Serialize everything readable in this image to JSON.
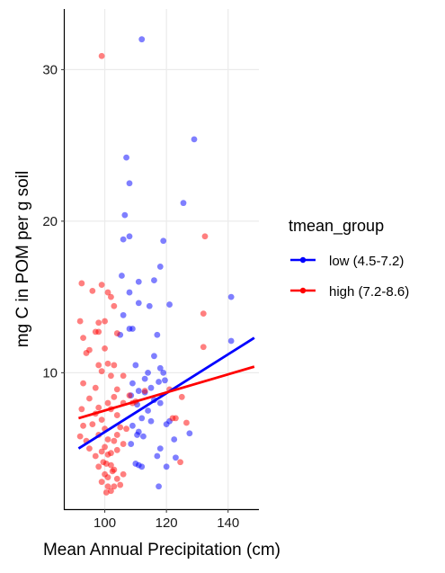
{
  "chart_data": {
    "type": "scatter",
    "title": "",
    "xlabel": "Mean Annual Precipitation (cm)",
    "ylabel": "mg C in POM per g soil",
    "xlim": [
      87,
      150
    ],
    "ylim": [
      1,
      34
    ],
    "x_ticks": [
      100,
      120,
      140
    ],
    "y_ticks": [
      10,
      20,
      30
    ],
    "grid": true,
    "legend": {
      "title": "tmean_group",
      "placement": "right"
    },
    "series": [
      {
        "name": "low (4.5-7.2)",
        "color": "#0000ff",
        "points": [
          [
            112,
            32.0
          ],
          [
            129,
            25.4
          ],
          [
            107,
            24.2
          ],
          [
            108,
            22.5
          ],
          [
            125.5,
            21.2
          ],
          [
            106.5,
            20.4
          ],
          [
            108,
            19.0
          ],
          [
            106,
            18.8
          ],
          [
            119,
            18.7
          ],
          [
            118,
            17.0
          ],
          [
            105.5,
            16.4
          ],
          [
            111,
            16.0
          ],
          [
            116,
            16.1
          ],
          [
            108,
            15.3
          ],
          [
            141,
            15.0
          ],
          [
            121,
            14.5
          ],
          [
            111,
            14.6
          ],
          [
            114.5,
            14.4
          ],
          [
            106,
            13.8
          ],
          [
            108,
            12.9
          ],
          [
            109,
            12.9
          ],
          [
            105,
            12.5
          ],
          [
            117,
            12.5
          ],
          [
            141,
            12.1
          ],
          [
            116,
            11.1
          ],
          [
            110,
            10.5
          ],
          [
            114,
            10.0
          ],
          [
            118,
            10.3
          ],
          [
            119,
            10.0
          ],
          [
            109,
            9.3
          ],
          [
            115,
            9.0
          ],
          [
            113,
            9.6
          ],
          [
            117.5,
            9.4
          ],
          [
            119.5,
            9.5
          ],
          [
            111,
            8.8
          ],
          [
            113,
            8.7
          ],
          [
            108.5,
            8.5
          ],
          [
            110.5,
            7.9
          ],
          [
            116,
            8.2
          ],
          [
            114,
            7.5
          ],
          [
            118,
            8.0
          ],
          [
            112,
            7.0
          ],
          [
            109,
            6.5
          ],
          [
            115,
            6.8
          ],
          [
            120,
            6.6
          ],
          [
            111,
            6.1
          ],
          [
            112.5,
            5.8
          ],
          [
            110.5,
            5.9
          ],
          [
            127.5,
            6.0
          ],
          [
            108.5,
            5.3
          ],
          [
            121,
            6.8
          ],
          [
            122.5,
            5.6
          ],
          [
            118,
            5.0
          ],
          [
            117,
            4.5
          ],
          [
            110,
            4.0
          ],
          [
            111,
            3.9
          ],
          [
            112,
            3.8
          ],
          [
            120,
            3.8
          ],
          [
            123,
            4.4
          ],
          [
            117.5,
            2.5
          ]
        ],
        "trend": {
          "x": [
            91.5,
            148.5
          ],
          "y": [
            5.0,
            12.3
          ]
        }
      },
      {
        "name": "high (7.2-8.6)",
        "color": "#ff0000",
        "points": [
          [
            99,
            30.9
          ],
          [
            132.5,
            19.0
          ],
          [
            92.5,
            15.9
          ],
          [
            99,
            15.8
          ],
          [
            96,
            15.4
          ],
          [
            101,
            15.3
          ],
          [
            102,
            15.0
          ],
          [
            103,
            14.4
          ],
          [
            132,
            13.9
          ],
          [
            98,
            13.3
          ],
          [
            92,
            13.4
          ],
          [
            100,
            13.4
          ],
          [
            97,
            12.7
          ],
          [
            93,
            12.3
          ],
          [
            98,
            12.7
          ],
          [
            104,
            12.6
          ],
          [
            95,
            11.5
          ],
          [
            94,
            11.3
          ],
          [
            100,
            11.6
          ],
          [
            132,
            11.7
          ],
          [
            98,
            10.5
          ],
          [
            101,
            10.6
          ],
          [
            103,
            10.5
          ],
          [
            99,
            10.1
          ],
          [
            102,
            9.8
          ],
          [
            106,
            9.8
          ],
          [
            93,
            9.3
          ],
          [
            97,
            9.0
          ],
          [
            104,
            8.9
          ],
          [
            108,
            8.5
          ],
          [
            113,
            8.8
          ],
          [
            121,
            8.9
          ],
          [
            95,
            8.3
          ],
          [
            101,
            8.0
          ],
          [
            103,
            8.4
          ],
          [
            106,
            8.0
          ],
          [
            110,
            8.1
          ],
          [
            125,
            8.4
          ],
          [
            92.5,
            7.6
          ],
          [
            97,
            7.3
          ],
          [
            98,
            7.7
          ],
          [
            102,
            7.6
          ],
          [
            104,
            7.2
          ],
          [
            122,
            7.0
          ],
          [
            123,
            7.0
          ],
          [
            93,
            6.5
          ],
          [
            96,
            6.6
          ],
          [
            99,
            6.9
          ],
          [
            100,
            6.3
          ],
          [
            105,
            6.4
          ],
          [
            107,
            6.3
          ],
          [
            126.5,
            6.7
          ],
          [
            92,
            5.8
          ],
          [
            94,
            5.5
          ],
          [
            98,
            5.9
          ],
          [
            101,
            5.6
          ],
          [
            103,
            5.5
          ],
          [
            104,
            5.9
          ],
          [
            106,
            5.3
          ],
          [
            95,
            5.0
          ],
          [
            99,
            4.8
          ],
          [
            100,
            5.1
          ],
          [
            101,
            4.6
          ],
          [
            102,
            4.7
          ],
          [
            104,
            4.9
          ],
          [
            97,
            4.5
          ],
          [
            99.5,
            4.1
          ],
          [
            100.5,
            4.0
          ],
          [
            102,
            3.9
          ],
          [
            103,
            3.6
          ],
          [
            98,
            3.8
          ],
          [
            100,
            3.3
          ],
          [
            101,
            3.1
          ],
          [
            102.5,
            3.5
          ],
          [
            104,
            3.0
          ],
          [
            106,
            3.3
          ],
          [
            99,
            2.8
          ],
          [
            101,
            2.5
          ],
          [
            100.5,
            2.1
          ],
          [
            102,
            2.2
          ],
          [
            103,
            2.5
          ],
          [
            105,
            2.6
          ],
          [
            124.5,
            4.1
          ],
          [
            109,
            8.0
          ]
        ],
        "trend": {
          "x": [
            91.5,
            148.5
          ],
          "y": [
            7.0,
            10.4
          ]
        }
      }
    ]
  }
}
